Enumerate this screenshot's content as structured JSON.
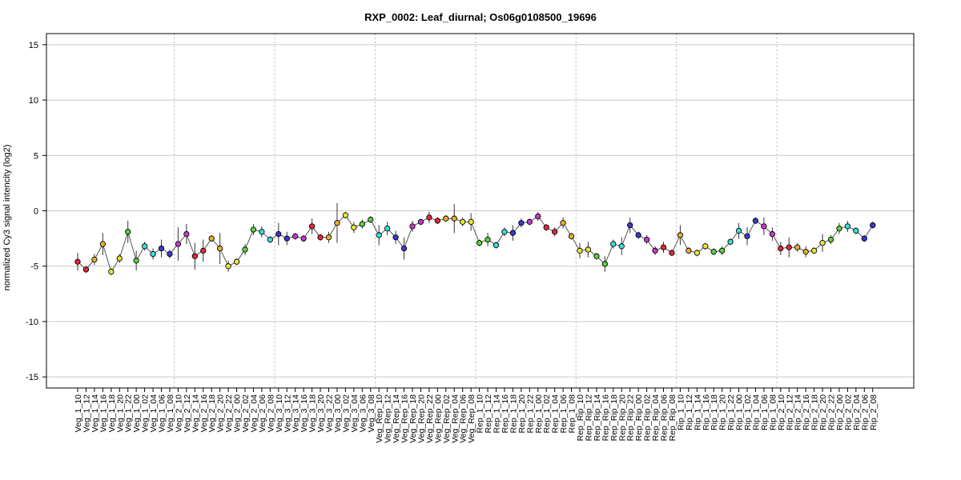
{
  "chart_data": {
    "type": "line",
    "title": "RXP_0002: Leaf_diurnal; Os06g0108500_19696",
    "xlabel": "",
    "ylabel": "normalized Cy3 signal intencity (log2)",
    "ylim": [
      -16,
      16
    ],
    "yticks": [
      -15,
      -10,
      -5,
      0,
      5,
      10,
      15
    ],
    "grid": true,
    "groups": [
      {
        "name": "Veg_1",
        "start": 0,
        "count": 12
      },
      {
        "name": "Veg_2",
        "start": 12,
        "count": 12
      },
      {
        "name": "Veg_3",
        "start": 24,
        "count": 12
      },
      {
        "name": "Veg_Rep",
        "start": 36,
        "count": 12
      },
      {
        "name": "Rep_1",
        "start": 48,
        "count": 12
      },
      {
        "name": "Rep_Rip",
        "start": 60,
        "count": 12
      },
      {
        "name": "Rip_1",
        "start": 72,
        "count": 12
      },
      {
        "name": "Rip_2",
        "start": 84,
        "count": 12
      }
    ],
    "point_colors": [
      "#e8263a",
      "#e8b030",
      "#e8e838",
      "#5ad23c",
      "#38e0d8",
      "#3a3ad0",
      "#c838d0"
    ],
    "categories": [
      "Veg_1_10",
      "Veg_1_12",
      "Veg_1_14",
      "Veg_1_16",
      "Veg_1_18",
      "Veg_1_20",
      "Veg_1_22",
      "Veg_1_00",
      "Veg_1_02",
      "Veg_1_04",
      "Veg_1_06",
      "Veg_1_08",
      "Veg_2_10",
      "Veg_2_12",
      "Veg_2_14",
      "Veg_2_16",
      "Veg_2_18",
      "Veg_2_20",
      "Veg_2_22",
      "Veg_2_00",
      "Veg_2_02",
      "Veg_2_04",
      "Veg_2_06",
      "Veg_2_08",
      "Veg_3_10",
      "Veg_3_12",
      "Veg_3_14",
      "Veg_3_16",
      "Veg_3_18",
      "Veg_3_20",
      "Veg_3_22",
      "Veg_3_00",
      "Veg_3_02",
      "Veg_3_04",
      "Veg_3_06",
      "Veg_3_08",
      "Veg_Rep_10",
      "Veg_Rep_12",
      "Veg_Rep_14",
      "Veg_Rep_16",
      "Veg_Rep_18",
      "Veg_Rep_20",
      "Veg_Rep_22",
      "Veg_Rep_00",
      "Veg_Rep_02",
      "Veg_Rep_04",
      "Veg_Rep_06",
      "Veg_Rep_08",
      "Rep_1_10",
      "Rep_1_12",
      "Rep_1_14",
      "Rep_1_16",
      "Rep_1_18",
      "Rep_1_20",
      "Rep_1_22",
      "Rep_1_00",
      "Rep_1_02",
      "Rep_1_04",
      "Rep_1_06",
      "Rep_1_08",
      "Rep_Rip_10",
      "Rep_Rip_12",
      "Rep_Rip_14",
      "Rep_Rip_16",
      "Rep_Rip_18",
      "Rep_Rip_20",
      "Rep_Rip_22",
      "Rep_Rip_00",
      "Rep_Rip_02",
      "Rep_Rip_04",
      "Rep_Rip_06",
      "Rep_Rip_08",
      "Rip_1_10",
      "Rip_1_12",
      "Rip_1_14",
      "Rip_1_16",
      "Rip_1_18",
      "Rip_1_20",
      "Rip_1_22",
      "Rip_1_00",
      "Rip_1_02",
      "Rip_1_04",
      "Rip_1_06",
      "Rip_1_08",
      "Rip_2_10",
      "Rip_2_12",
      "Rip_2_14",
      "Rip_2_16",
      "Rip_2_18",
      "Rip_2_20",
      "Rip_2_22",
      "Rip_2_00",
      "Rip_2_02",
      "Rip_2_04",
      "Rip_2_06",
      "Rip_2_08"
    ],
    "values": [
      -4.6,
      -5.3,
      -4.4,
      -3.0,
      -5.5,
      -4.3,
      -1.9,
      -4.5,
      -3.2,
      -3.9,
      -3.4,
      -3.9,
      -3.0,
      -2.1,
      -4.1,
      -3.6,
      -2.5,
      -3.4,
      -5.0,
      -4.6,
      -3.5,
      -1.7,
      -1.9,
      -2.6,
      -2.1,
      -2.5,
      -2.3,
      -2.5,
      -1.4,
      -2.4,
      -2.4,
      -1.1,
      -0.4,
      -1.5,
      -1.2,
      -0.8,
      -2.2,
      -1.6,
      -2.4,
      -3.4,
      -1.4,
      -1.0,
      -0.6,
      -0.9,
      -0.7,
      -0.7,
      -1.0,
      -1.0,
      -2.9,
      -2.6,
      -3.1,
      -1.9,
      -2.0,
      -1.1,
      -1.0,
      -0.5,
      -1.5,
      -1.9,
      -1.1,
      -2.3,
      -3.6,
      -3.5,
      -4.1,
      -4.8,
      -3.0,
      -3.2,
      -1.3,
      -2.2,
      -2.6,
      -3.6,
      -3.3,
      -3.8,
      -2.2,
      -3.6,
      -3.8,
      -3.2,
      -3.7,
      -3.6,
      -2.8,
      -1.8,
      -2.3,
      -0.9,
      -1.4,
      -2.1,
      -3.4,
      -3.3,
      -3.3,
      -3.7,
      -3.6,
      -2.9,
      -2.6,
      -1.6,
      -1.4,
      -1.8,
      -2.5,
      -1.3
    ],
    "errors": [
      0.8,
      0.3,
      0.5,
      1.0,
      0.3,
      0.4,
      1.0,
      0.9,
      0.4,
      0.5,
      0.8,
      0.4,
      1.5,
      0.9,
      1.2,
      1.0,
      0.3,
      1.4,
      0.5,
      0.3,
      0.5,
      0.5,
      0.5,
      0.3,
      1.0,
      0.6,
      0.3,
      0.3,
      0.7,
      0.3,
      0.5,
      1.8,
      0.3,
      0.5,
      0.4,
      0.3,
      0.9,
      0.6,
      0.6,
      1.0,
      0.5,
      0.3,
      0.5,
      0.3,
      0.3,
      1.3,
      0.4,
      0.8,
      0.3,
      0.6,
      0.3,
      0.4,
      0.7,
      0.4,
      0.3,
      0.4,
      0.3,
      0.4,
      0.5,
      0.3,
      0.7,
      0.7,
      0.3,
      0.7,
      0.4,
      0.8,
      0.7,
      0.3,
      0.4,
      0.4,
      0.5,
      0.3,
      0.9,
      0.3,
      0.3,
      0.3,
      0.3,
      0.4,
      0.3,
      0.7,
      0.8,
      0.3,
      0.8,
      0.6,
      0.6,
      0.9,
      0.4,
      0.5,
      0.3,
      0.8,
      0.4,
      0.5,
      0.5,
      0.3,
      0.3,
      0.3
    ]
  }
}
